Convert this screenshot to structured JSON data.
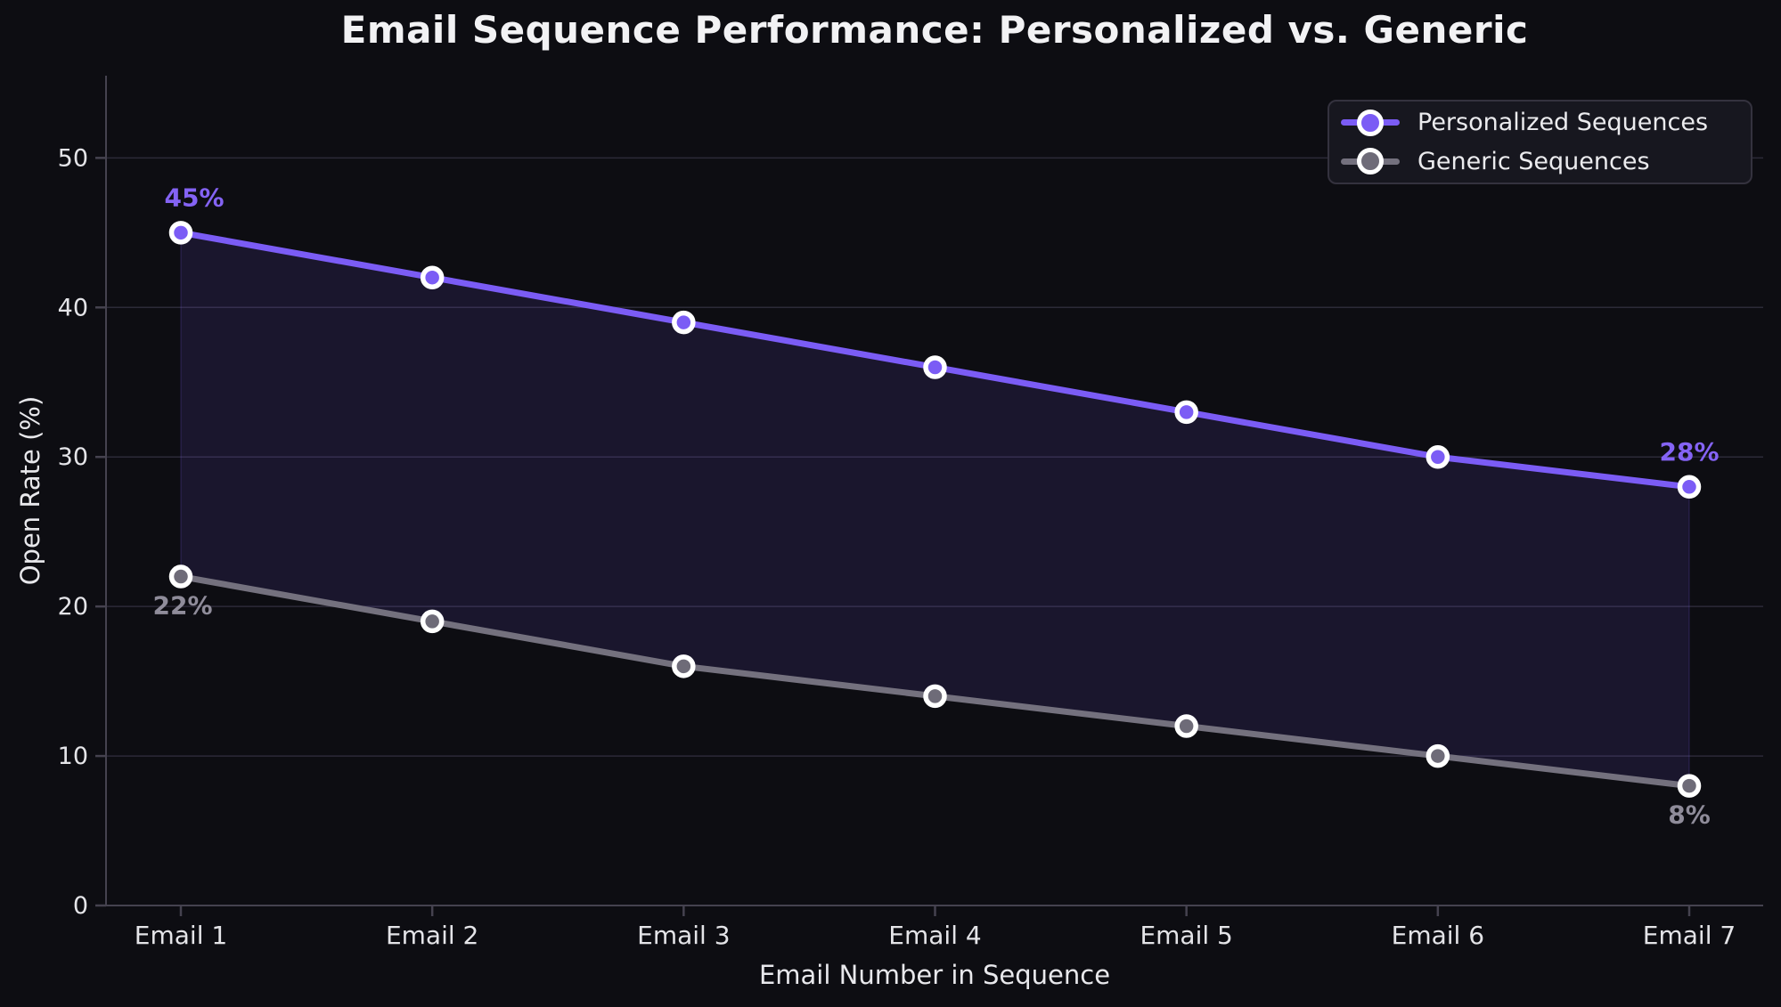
{
  "title": "Email Sequence Performance: Personalized vs. Generic",
  "chart_data": {
    "type": "line",
    "categories": [
      "Email 1",
      "Email 2",
      "Email 3",
      "Email 4",
      "Email 5",
      "Email 6",
      "Email 7"
    ],
    "series": [
      {
        "name": "Personalized Sequences",
        "values": [
          45,
          42,
          39,
          36,
          33,
          30,
          28
        ],
        "color": "#7b5cf5",
        "marker_fill": "#7b5cf5",
        "label_color": "#8463f4",
        "endpoint_labels": {
          "first": "45%",
          "last": "28%"
        },
        "label_position": "above"
      },
      {
        "name": "Generic Sequences",
        "values": [
          22,
          19,
          16,
          14,
          12,
          10,
          8
        ],
        "color": "#74717e",
        "marker_fill": "#6e6b78",
        "label_color": "#8f8c9a",
        "endpoint_labels": {
          "first": "22%",
          "last": "8%"
        },
        "label_position": "below"
      }
    ],
    "xlabel": "Email Number in Sequence",
    "ylabel": "Open Rate (%)",
    "yticks": [
      0,
      10,
      20,
      30,
      40,
      50
    ],
    "ylim": [
      0,
      55.5
    ],
    "grid": true,
    "legend_position": "upper right",
    "fill_between": true,
    "fill_color": "rgba(123,92,245,0.12)",
    "marker_style": "circle-white-ring"
  },
  "legend": {
    "items": [
      {
        "label": "Personalized Sequences",
        "color": "#7b5cf5"
      },
      {
        "label": "Generic Sequences",
        "color": "#74717e"
      }
    ]
  },
  "colors": {
    "background": "#0d0d12",
    "grid": "#2c2a38",
    "axis": "#45424f",
    "tick_label": "#e4e4e8",
    "axis_label": "#e8e8ec",
    "title": "#f2f2f4",
    "legend_bg": "#17171f",
    "legend_border": "#34323e",
    "legend_text": "#ebebee"
  }
}
